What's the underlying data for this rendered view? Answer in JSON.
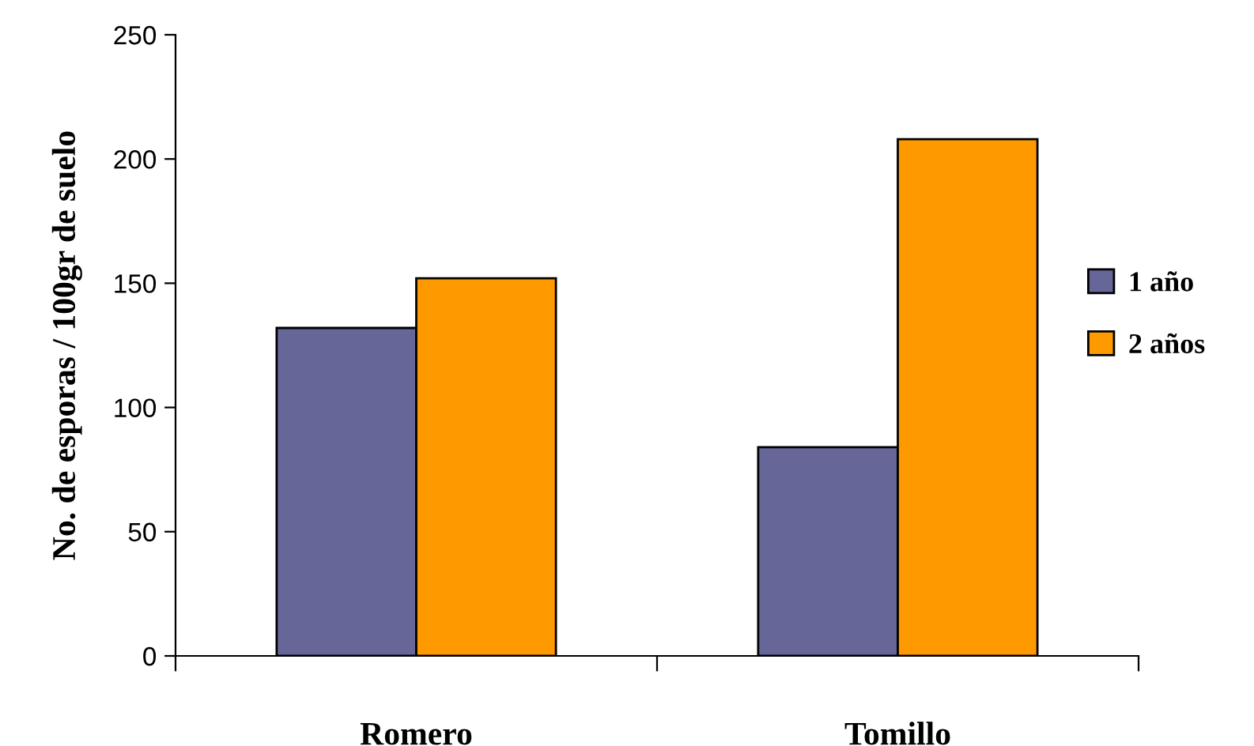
{
  "chart_data": {
    "type": "bar",
    "ylabel": "No. de esporas / 100gr de suelo",
    "categories": [
      "Romero",
      "Tomillo"
    ],
    "series": [
      {
        "name": "1 año",
        "color": "#666699",
        "values": [
          132,
          84
        ]
      },
      {
        "name": "2 años",
        "color": "#ff9900",
        "values": [
          152,
          208
        ]
      }
    ],
    "ylim": [
      0,
      250
    ],
    "yticks": [
      0,
      50,
      100,
      150,
      200,
      250
    ],
    "grid": false,
    "legend": "right"
  }
}
